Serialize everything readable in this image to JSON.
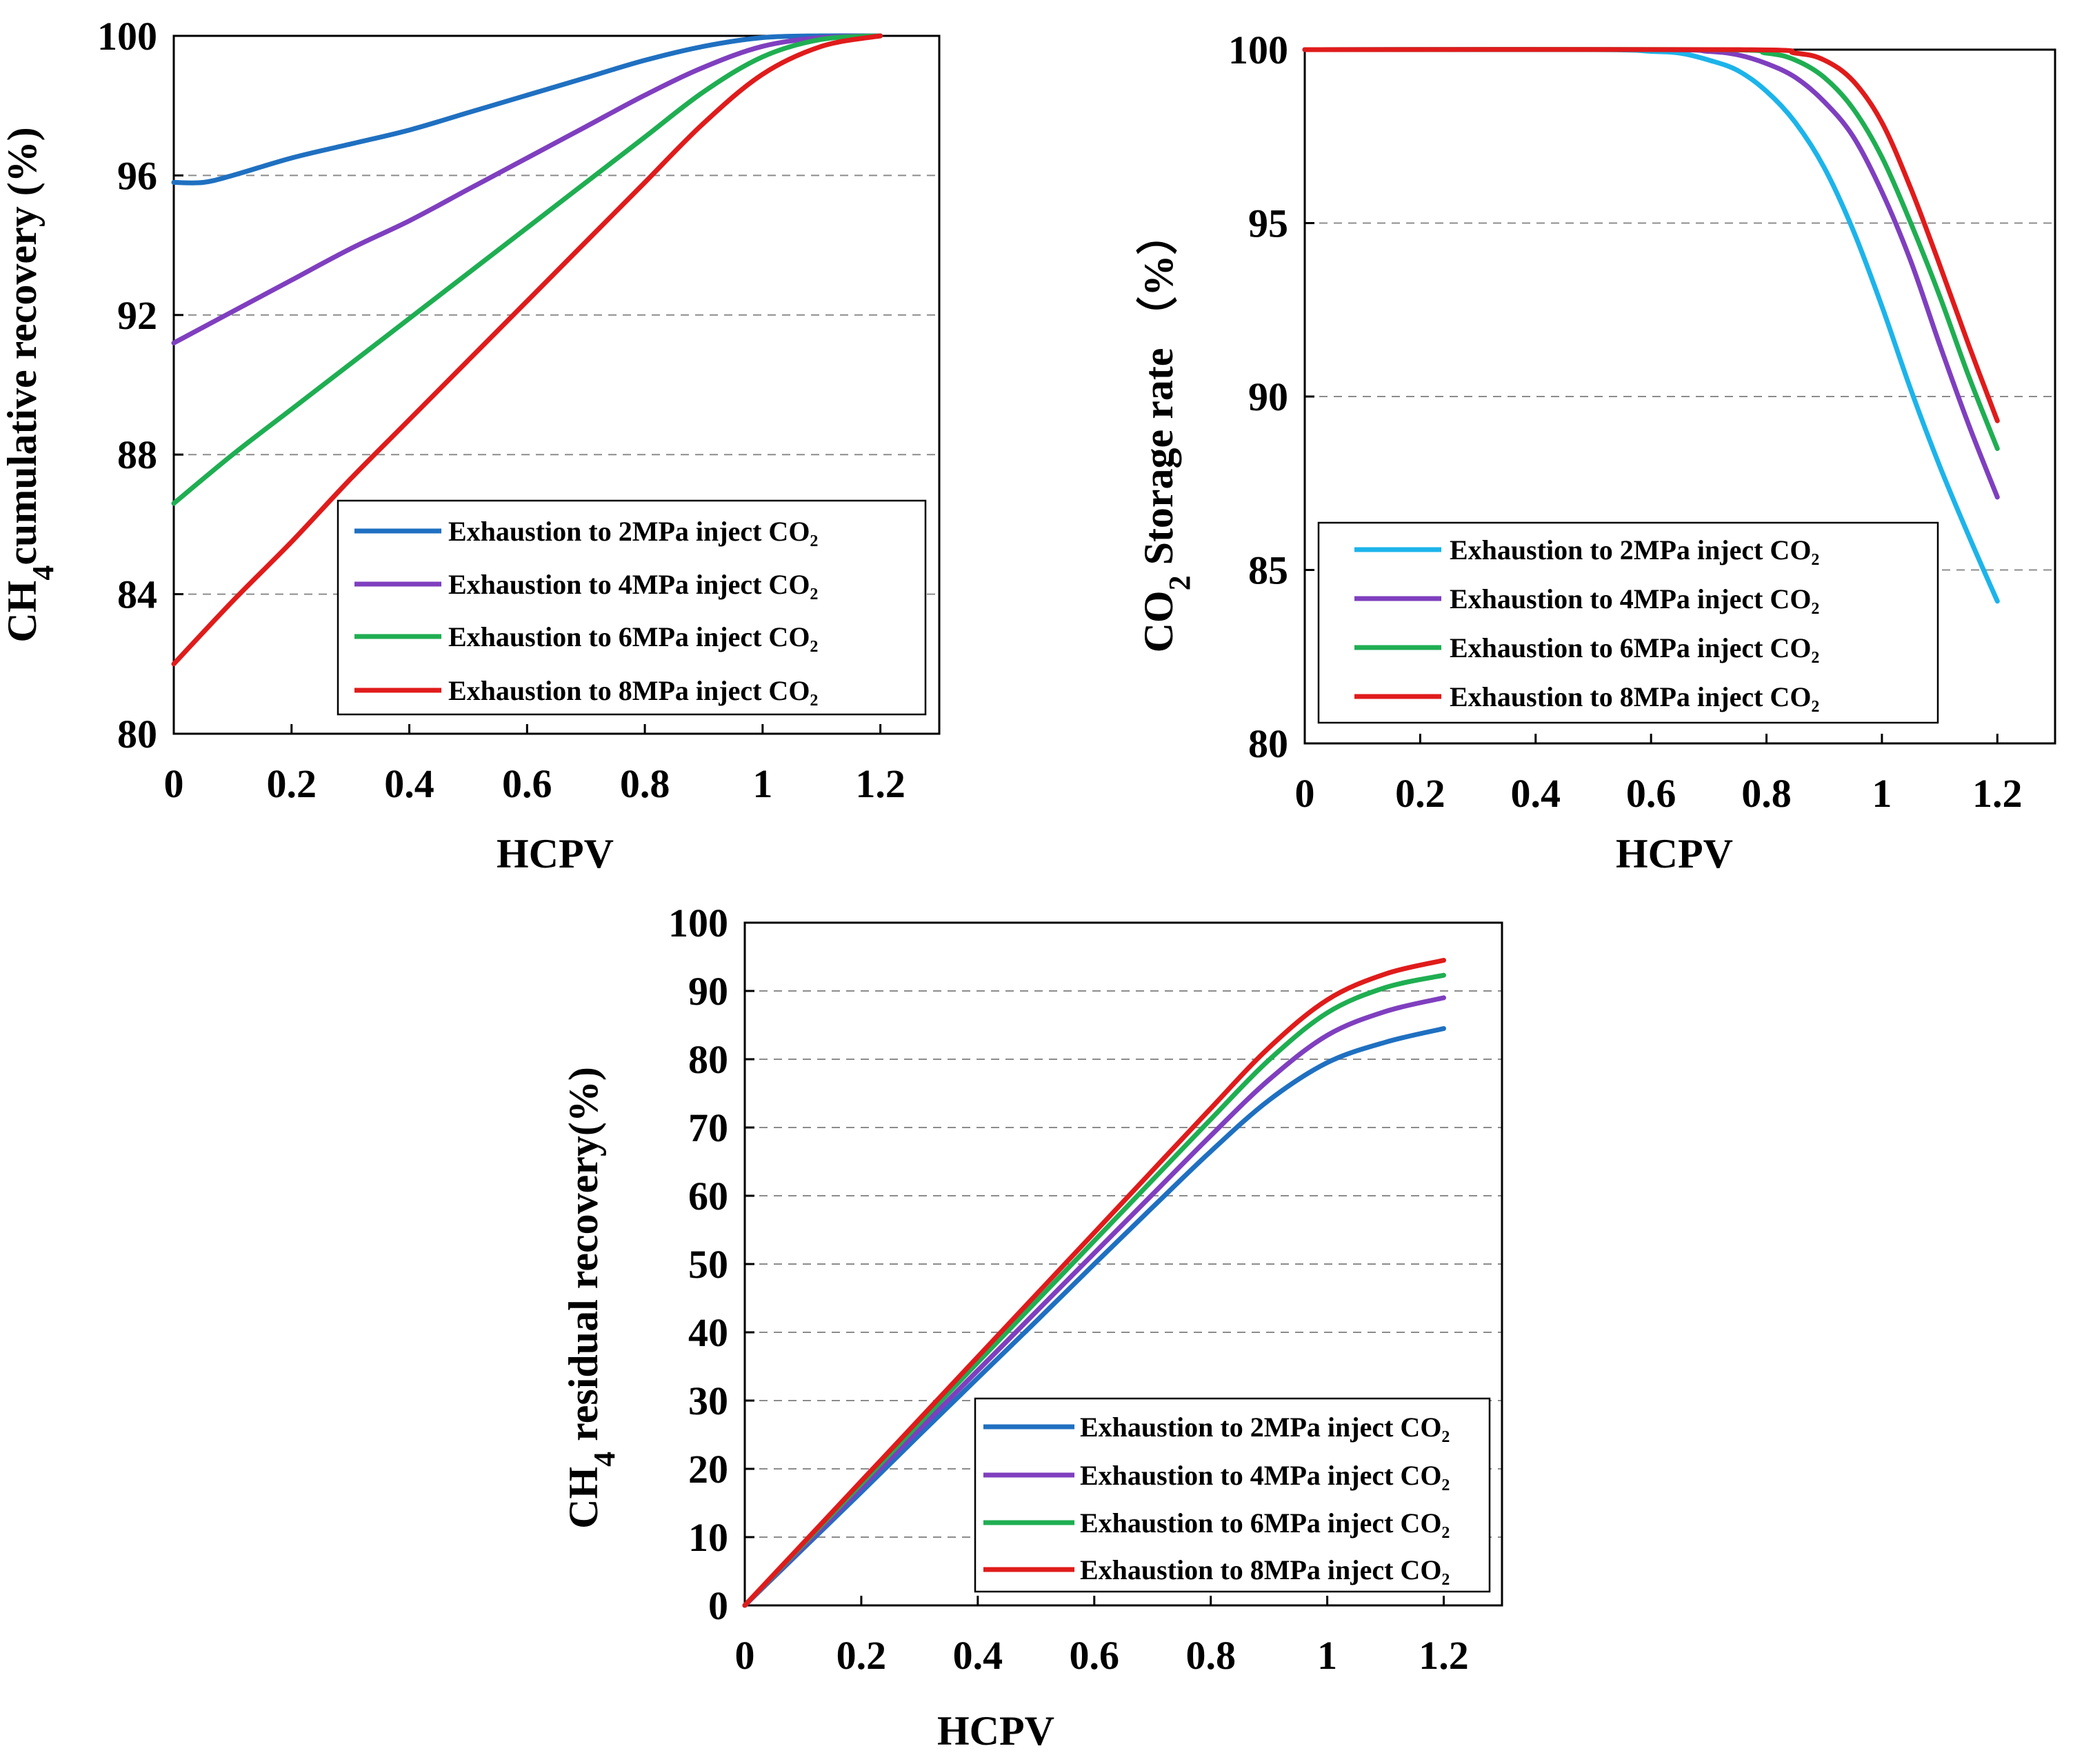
{
  "chart_data": [
    {
      "type": "line",
      "id": "cumulative",
      "xlabel": "HCPV",
      "ylabel": {
        "pre": "CH",
        "sub": "4",
        "post": "cumulative recovery (%)"
      },
      "xlim": [
        0,
        1.3
      ],
      "ylim": [
        80,
        100
      ],
      "xticks": [
        0,
        0.2,
        0.4,
        0.6,
        0.8,
        1,
        1.2
      ],
      "xtick_labels": [
        "0",
        "0.2",
        "0.4",
        "0.6",
        "0.8",
        "1",
        "1.2"
      ],
      "yticks": [
        80,
        84,
        88,
        92,
        96,
        100
      ],
      "ytick_labels": [
        "80",
        "84",
        "88",
        "92",
        "96",
        "100"
      ],
      "grid": "horizontal dashed",
      "legend_position": "bottom-right",
      "series": [
        {
          "name": "Exhaustion to 2MPa inject CO₂",
          "color": "#1f70c1",
          "x": [
            0,
            0.05,
            0.1,
            0.2,
            0.3,
            0.4,
            0.5,
            0.6,
            0.7,
            0.8,
            0.9,
            1.0,
            1.1,
            1.2
          ],
          "y": [
            95.8,
            95.8,
            96.0,
            96.5,
            96.9,
            97.3,
            97.8,
            98.3,
            98.8,
            99.3,
            99.7,
            99.95,
            100,
            100
          ]
        },
        {
          "name": "Exhaustion to 4MPa inject CO₂",
          "color": "#7f3fbf",
          "x": [
            0,
            0.1,
            0.2,
            0.3,
            0.4,
            0.5,
            0.6,
            0.7,
            0.8,
            0.9,
            1.0,
            1.1,
            1.2
          ],
          "y": [
            91.2,
            92.1,
            93.0,
            93.9,
            94.7,
            95.6,
            96.5,
            97.4,
            98.3,
            99.1,
            99.7,
            99.95,
            100
          ]
        },
        {
          "name": "Exhaustion to 6MPa inject CO₂",
          "color": "#1fae52",
          "x": [
            0,
            0.1,
            0.2,
            0.3,
            0.4,
            0.5,
            0.6,
            0.7,
            0.8,
            0.9,
            1.0,
            1.1,
            1.2
          ],
          "y": [
            86.6,
            88.0,
            89.3,
            90.6,
            91.9,
            93.2,
            94.5,
            95.8,
            97.1,
            98.4,
            99.4,
            99.9,
            100
          ]
        },
        {
          "name": "Exhaustion to 8MPa inject CO₂",
          "color": "#e01b1b",
          "x": [
            0,
            0.1,
            0.2,
            0.3,
            0.4,
            0.5,
            0.6,
            0.7,
            0.8,
            0.9,
            1.0,
            1.1,
            1.2
          ],
          "y": [
            82.0,
            83.8,
            85.5,
            87.3,
            89.0,
            90.7,
            92.4,
            94.1,
            95.8,
            97.5,
            98.9,
            99.7,
            100
          ]
        }
      ]
    },
    {
      "type": "line",
      "id": "storage",
      "xlabel": "HCPV",
      "ylabel": {
        "pre": "CO",
        "sub": "2",
        "post": " Storage rate （%）"
      },
      "xlim": [
        0,
        1.3
      ],
      "ylim": [
        80,
        100
      ],
      "xticks": [
        0,
        0.2,
        0.4,
        0.6,
        0.8,
        1,
        1.2
      ],
      "xtick_labels": [
        "0",
        "0.2",
        "0.4",
        "0.6",
        "0.8",
        "1",
        "1.2"
      ],
      "yticks": [
        80,
        85,
        90,
        95,
        100
      ],
      "ytick_labels": [
        "80",
        "85",
        "90",
        "95",
        "100"
      ],
      "grid": "horizontal dashed",
      "legend_position": "bottom-left",
      "series": [
        {
          "name": "Exhaustion to 2MPa inject CO₂",
          "color": "#1cb4ea",
          "x": [
            0,
            0.5,
            0.6,
            0.65,
            0.7,
            0.75,
            0.8,
            0.85,
            0.9,
            0.95,
            1.0,
            1.05,
            1.1,
            1.15,
            1.2
          ],
          "y": [
            100,
            100,
            99.95,
            99.9,
            99.7,
            99.4,
            98.8,
            97.9,
            96.6,
            94.8,
            92.6,
            90.2,
            88.0,
            86.0,
            84.1
          ]
        },
        {
          "name": "Exhaustion to 4MPa inject CO₂",
          "color": "#7f3fbf",
          "x": [
            0,
            0.6,
            0.7,
            0.75,
            0.8,
            0.85,
            0.9,
            0.95,
            1.0,
            1.05,
            1.1,
            1.15,
            1.2
          ],
          "y": [
            100,
            100,
            99.95,
            99.85,
            99.6,
            99.2,
            98.5,
            97.5,
            95.9,
            93.9,
            91.5,
            89.2,
            87.1
          ]
        },
        {
          "name": "Exhaustion to 6MPa inject CO₂",
          "color": "#1fae52",
          "x": [
            0,
            0.7,
            0.8,
            0.85,
            0.9,
            0.95,
            1.0,
            1.05,
            1.1,
            1.15,
            1.2
          ],
          "y": [
            100,
            100,
            99.9,
            99.7,
            99.2,
            98.3,
            96.9,
            95.0,
            92.9,
            90.6,
            88.5
          ]
        },
        {
          "name": "Exhaustion to 8MPa inject CO₂",
          "color": "#e01b1b",
          "x": [
            0,
            0.75,
            0.85,
            0.9,
            0.95,
            1.0,
            1.05,
            1.1,
            1.15,
            1.2
          ],
          "y": [
            100,
            100,
            99.9,
            99.7,
            99.1,
            97.9,
            96.0,
            93.8,
            91.5,
            89.3
          ]
        }
      ]
    },
    {
      "type": "line",
      "id": "residual",
      "xlabel": "HCPV",
      "ylabel": {
        "pre": "CH",
        "sub": "4",
        "post": " residual recovery(%)"
      },
      "xlim": [
        0,
        1.3
      ],
      "ylim": [
        0,
        100
      ],
      "xticks": [
        0,
        0.2,
        0.4,
        0.6,
        0.8,
        1,
        1.2
      ],
      "xtick_labels": [
        "0",
        "0.2",
        "0.4",
        "0.6",
        "0.8",
        "1",
        "1.2"
      ],
      "yticks": [
        0,
        10,
        20,
        30,
        40,
        50,
        60,
        70,
        80,
        90,
        100
      ],
      "ytick_labels": [
        "0",
        "10",
        "20",
        "30",
        "40",
        "50",
        "60",
        "70",
        "80",
        "90",
        "100"
      ],
      "grid": "horizontal dashed",
      "legend_position": "bottom-right",
      "series": [
        {
          "name": "Exhaustion to 2MPa inject CO₂",
          "color": "#1f70c1",
          "x": [
            0,
            0.1,
            0.2,
            0.3,
            0.4,
            0.5,
            0.6,
            0.7,
            0.8,
            0.9,
            1.0,
            1.1,
            1.2
          ],
          "y": [
            0,
            8.3,
            16.6,
            25.0,
            33.3,
            41.6,
            50.0,
            58.3,
            66.5,
            74.0,
            79.5,
            82.5,
            84.5
          ]
        },
        {
          "name": "Exhaustion to 4MPa inject CO₂",
          "color": "#7f3fbf",
          "x": [
            0,
            0.1,
            0.2,
            0.3,
            0.4,
            0.5,
            0.6,
            0.7,
            0.8,
            0.9,
            1.0,
            1.1,
            1.2
          ],
          "y": [
            0,
            8.6,
            17.2,
            25.8,
            34.4,
            43.0,
            51.6,
            60.2,
            68.8,
            77.0,
            83.5,
            87.0,
            89.0
          ]
        },
        {
          "name": "Exhaustion to 6MPa inject CO₂",
          "color": "#1fae52",
          "x": [
            0,
            0.1,
            0.2,
            0.3,
            0.4,
            0.5,
            0.6,
            0.7,
            0.8,
            0.9,
            1.0,
            1.1,
            1.2
          ],
          "y": [
            0,
            8.9,
            17.8,
            26.7,
            35.6,
            44.5,
            53.4,
            62.3,
            71.2,
            79.9,
            86.8,
            90.5,
            92.3
          ]
        },
        {
          "name": "Exhaustion to 8MPa inject CO₂",
          "color": "#e01b1b",
          "x": [
            0,
            0.1,
            0.2,
            0.3,
            0.4,
            0.5,
            0.6,
            0.7,
            0.8,
            0.9,
            1.0,
            1.1,
            1.2
          ],
          "y": [
            0,
            9.1,
            18.2,
            27.3,
            36.4,
            45.5,
            54.6,
            63.7,
            72.8,
            81.7,
            88.7,
            92.5,
            94.5
          ]
        }
      ]
    }
  ]
}
